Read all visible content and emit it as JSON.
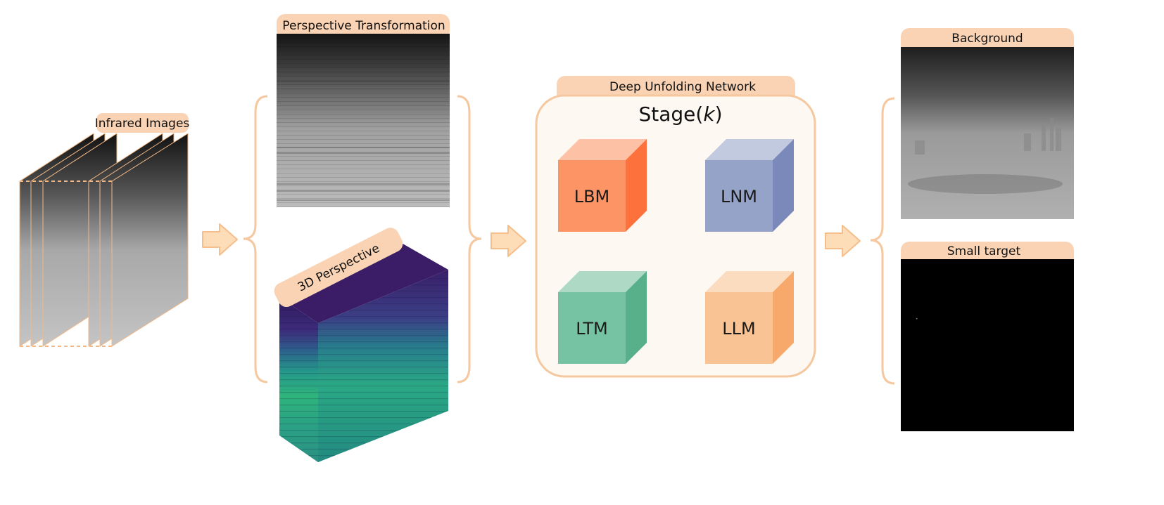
{
  "labels": {
    "infrared_images": "Infrared Images",
    "perspective_transformation": "Perspective Transformation",
    "perspective_3d": "3D Perspective",
    "deep_unfolding_network": "Deep Unfolding Network",
    "stage_prefix": "Stage(",
    "stage_var": "k",
    "stage_suffix": ")",
    "background": "Background",
    "small_target": "Small target"
  },
  "modules": [
    {
      "label": "LBM",
      "front": "#FD9466",
      "top": "#FDC1A6",
      "side": "#FD723C"
    },
    {
      "label": "LNM",
      "front": "#95A3C8",
      "top": "#C2CADF",
      "side": "#7A89BA"
    },
    {
      "label": "LTM",
      "front": "#76C3A3",
      "top": "#ADD9C5",
      "side": "#58B08B"
    },
    {
      "label": "LLM",
      "front": "#F9C393",
      "top": "#FCDCBE",
      "side": "#F6A96A"
    }
  ],
  "colors": {
    "accent": "#F9D3B4",
    "accent_stroke": "#F2B886",
    "panel_fill": "#FEF8F3",
    "arrow_fill": "#FDDCB8",
    "arrow_stroke": "#F5BE8A"
  }
}
